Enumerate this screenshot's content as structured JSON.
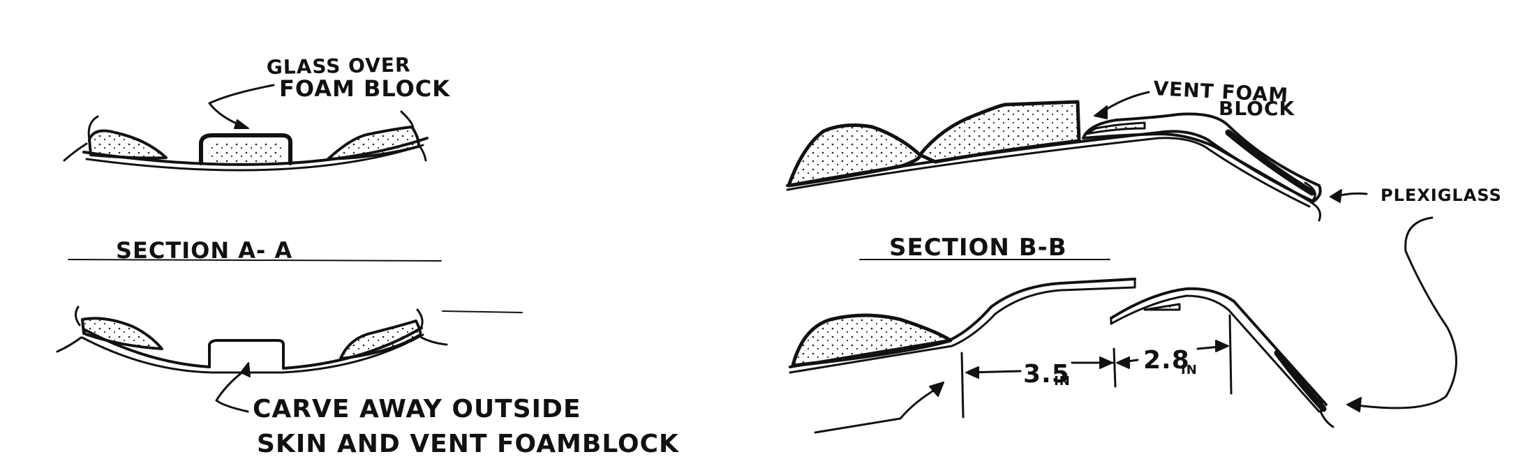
{
  "labels": {
    "glass_over_line1": "GLASS OVER",
    "glass_over_line2": "FOAM BLOCK",
    "vent_foam_line1": "VENT FOAM",
    "vent_foam_line2": "BLOCK",
    "plexiglass": "PLEXIGLASS",
    "section_a": "SECTION A- A",
    "section_b": "SECTION B-B",
    "carve_line1": "CARVE AWAY OUTSIDE",
    "carve_line2": "SKIN AND VENT FOAMBLOCK",
    "dim_1_value": "3.5",
    "dim_1_unit": "IN",
    "dim_2_value": "2.8",
    "dim_2_unit": "IN"
  },
  "colors": {
    "ink": "#111111",
    "paper": "#ffffff"
  }
}
